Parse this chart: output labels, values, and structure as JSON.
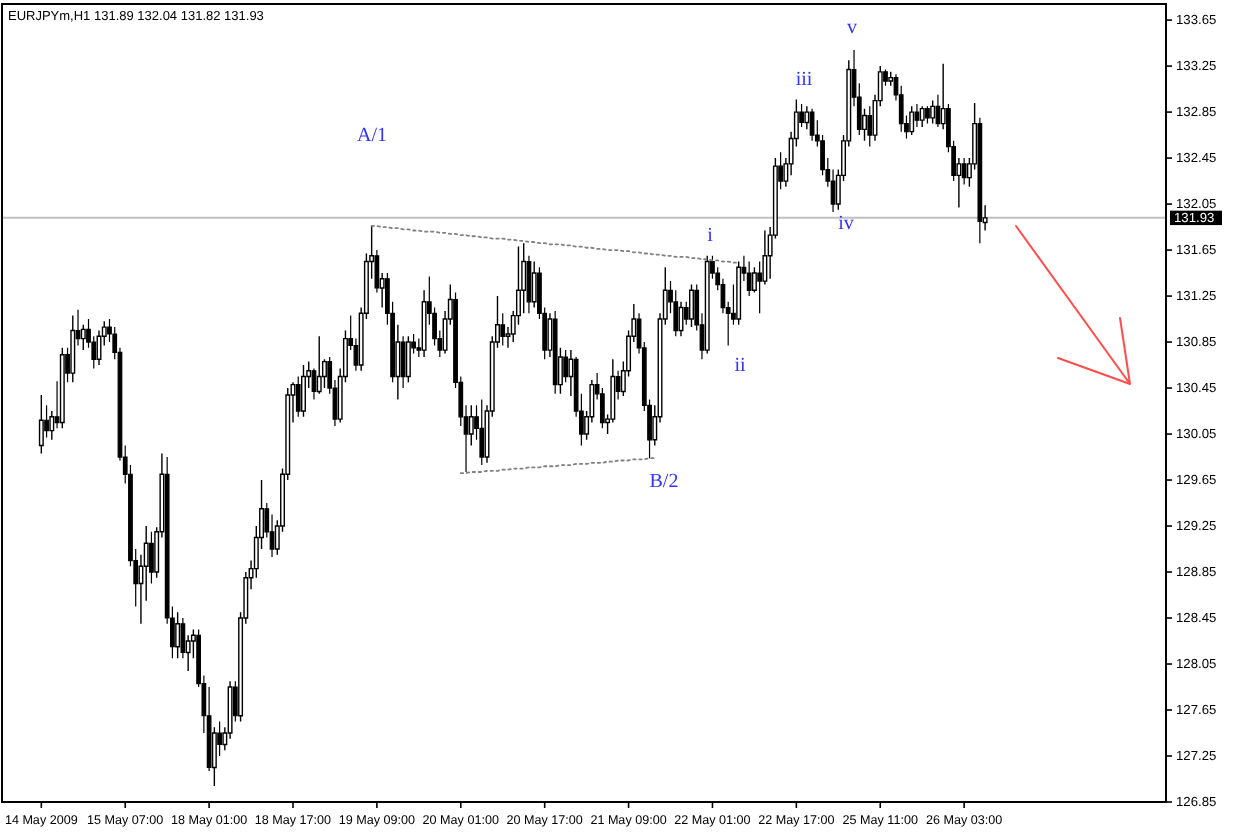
{
  "chart_data": {
    "type": "candlestick",
    "title": "EURJPYm,H1 131.89 132.04 131.82 131.93",
    "categories": [
      null,
      null,
      null,
      null,
      null,
      null,
      null,
      "14 May 2009",
      null,
      null,
      null,
      null,
      null,
      null,
      null,
      null,
      null,
      null,
      null,
      null,
      null,
      null,
      null,
      "15 May 07:00",
      null,
      null,
      null,
      null,
      null,
      null,
      null,
      null,
      null,
      null,
      null,
      null,
      null,
      null,
      null,
      "18 May 01:00",
      null,
      null,
      null,
      null,
      null,
      null,
      null,
      null,
      null,
      null,
      null,
      null,
      null,
      null,
      null,
      "18 May 17:00",
      null,
      null,
      null,
      null,
      null,
      null,
      null,
      null,
      null,
      null,
      null,
      null,
      null,
      null,
      null,
      "19 May 09:00",
      null,
      null,
      null,
      null,
      null,
      null,
      null,
      null,
      null,
      null,
      null,
      null,
      null,
      null,
      null,
      "20 May 01:00",
      null,
      null,
      null,
      null,
      null,
      null,
      null,
      null,
      null,
      null,
      null,
      null,
      null,
      null,
      null,
      "20 May 17:00",
      null,
      null,
      null,
      null,
      null,
      null,
      null,
      null,
      null,
      null,
      null,
      null,
      null,
      null,
      null,
      "21 May 09:00",
      null,
      null,
      null,
      null,
      null,
      null,
      null,
      null,
      null,
      null,
      null,
      null,
      null,
      null,
      null,
      "22 May 01:00",
      null,
      null,
      null,
      null,
      null,
      null,
      null,
      null,
      null,
      null,
      null,
      null,
      null,
      null,
      null,
      "22 May 17:00",
      null,
      null,
      null,
      null,
      null,
      null,
      null,
      null,
      null,
      null,
      null,
      null,
      null,
      null,
      null,
      "25 May 11:00",
      null,
      null,
      null,
      null,
      null,
      null,
      null,
      null,
      null,
      null,
      null,
      null,
      null,
      null,
      null,
      "26 May 03:00",
      null,
      null,
      null,
      null,
      null,
      null,
      null,
      null,
      null,
      null,
      null,
      null,
      null,
      null,
      null,
      null,
      null,
      null,
      null,
      null,
      null,
      null,
      null,
      null,
      null,
      null,
      null,
      null,
      null,
      null,
      null,
      null,
      null,
      null,
      null,
      null,
      null,
      null
    ],
    "ylim": [
      126.85,
      133.79
    ],
    "yticks": [
      126.85,
      127.25,
      127.65,
      128.05,
      128.45,
      128.85,
      129.25,
      129.65,
      130.05,
      130.45,
      130.85,
      131.25,
      131.65,
      132.05,
      132.45,
      132.85,
      133.25,
      133.65
    ],
    "series": [
      {
        "color": "#000000",
        "ohlc": [
          null,
          null,
          null,
          null,
          null,
          null,
          null,
          [
            129.95,
            130.39,
            129.88,
            130.17
          ],
          [
            130.17,
            130.3,
            130.02,
            130.08
          ],
          [
            130.08,
            130.25,
            130.0,
            130.2
          ],
          [
            130.2,
            130.51,
            130.1,
            130.15
          ],
          [
            130.15,
            130.8,
            130.1,
            130.74
          ],
          [
            130.74,
            130.8,
            130.5,
            130.58
          ],
          [
            130.58,
            131.08,
            130.5,
            130.95
          ],
          [
            130.95,
            131.13,
            130.82,
            130.88
          ],
          [
            130.88,
            131.0,
            130.78,
            130.96
          ],
          [
            130.96,
            131.05,
            130.8,
            130.85
          ],
          [
            130.85,
            130.9,
            130.62,
            130.7
          ],
          [
            130.7,
            130.95,
            130.65,
            130.9
          ],
          [
            130.9,
            131.03,
            130.82,
            130.98
          ],
          [
            130.98,
            131.05,
            130.85,
            130.92
          ],
          [
            130.92,
            130.98,
            130.7,
            130.76
          ],
          [
            130.76,
            130.8,
            129.82,
            129.85
          ],
          [
            129.85,
            129.95,
            129.62,
            129.7
          ],
          [
            129.7,
            129.78,
            128.9,
            128.95
          ],
          [
            128.95,
            129.05,
            128.55,
            128.75
          ],
          [
            128.75,
            129.0,
            128.4,
            128.9
          ],
          [
            128.9,
            129.25,
            128.6,
            129.1
          ],
          [
            129.1,
            129.2,
            128.75,
            128.85
          ],
          [
            128.85,
            129.24,
            128.8,
            129.2
          ],
          [
            129.2,
            129.88,
            129.15,
            129.7
          ],
          [
            129.7,
            129.85,
            128.4,
            128.45
          ],
          [
            128.45,
            128.55,
            128.1,
            128.2
          ],
          [
            128.2,
            128.5,
            128.1,
            128.4
          ],
          [
            128.4,
            128.45,
            128.1,
            128.15
          ],
          [
            128.15,
            128.3,
            127.99,
            128.25
          ],
          [
            128.25,
            128.35,
            128.1,
            128.3
          ],
          [
            128.3,
            128.35,
            127.85,
            127.88
          ],
          [
            127.88,
            127.95,
            127.45,
            127.6
          ],
          [
            127.6,
            127.85,
            127.12,
            127.15
          ],
          [
            127.15,
            127.5,
            126.99,
            127.45
          ],
          [
            127.45,
            127.55,
            127.25,
            127.35
          ],
          [
            127.35,
            127.5,
            127.3,
            127.45
          ],
          [
            127.45,
            127.9,
            127.4,
            127.85
          ],
          [
            127.85,
            127.9,
            127.55,
            127.6
          ],
          [
            127.6,
            128.5,
            127.55,
            128.45
          ],
          [
            128.45,
            128.85,
            128.4,
            128.8
          ],
          [
            128.8,
            128.95,
            128.7,
            128.88
          ],
          [
            128.88,
            129.25,
            128.8,
            129.15
          ],
          [
            129.15,
            129.65,
            129.05,
            129.4
          ],
          [
            129.4,
            129.45,
            129.15,
            129.2
          ],
          [
            129.2,
            129.35,
            128.98,
            129.05
          ],
          [
            129.05,
            129.3,
            129.0,
            129.25
          ],
          [
            129.25,
            129.75,
            129.2,
            129.7
          ],
          [
            129.7,
            130.45,
            129.65,
            130.39
          ],
          [
            130.39,
            130.5,
            130.15,
            130.48
          ],
          [
            130.48,
            130.55,
            130.2,
            130.25
          ],
          [
            130.25,
            130.65,
            130.2,
            130.55
          ],
          [
            130.55,
            130.68,
            130.45,
            130.6
          ],
          [
            130.6,
            130.62,
            130.35,
            130.42
          ],
          [
            130.42,
            130.9,
            130.4,
            130.55
          ],
          [
            130.55,
            130.7,
            130.45,
            130.68
          ],
          [
            130.68,
            130.72,
            130.4,
            130.45
          ],
          [
            130.45,
            130.52,
            130.12,
            130.18
          ],
          [
            130.18,
            130.62,
            130.15,
            130.55
          ],
          [
            130.55,
            130.95,
            130.5,
            130.88
          ],
          [
            130.88,
            131.08,
            130.78,
            130.82
          ],
          [
            130.82,
            130.88,
            130.6,
            130.65
          ],
          [
            130.65,
            131.15,
            130.6,
            131.1
          ],
          [
            131.1,
            131.62,
            131.05,
            131.55
          ],
          [
            131.55,
            131.86,
            131.4,
            131.6
          ],
          [
            131.6,
            131.65,
            131.28,
            131.32
          ],
          [
            131.32,
            131.45,
            131.15,
            131.4
          ],
          [
            131.4,
            131.45,
            131.0,
            131.1
          ],
          [
            131.1,
            131.2,
            130.5,
            130.55
          ],
          [
            130.55,
            131.0,
            130.35,
            130.85
          ],
          [
            130.85,
            130.9,
            130.45,
            130.55
          ],
          [
            130.55,
            130.9,
            130.5,
            130.85
          ],
          [
            130.85,
            130.92,
            130.75,
            130.8
          ],
          [
            130.8,
            130.88,
            130.72,
            130.78
          ],
          [
            130.78,
            131.3,
            130.72,
            131.2
          ],
          [
            131.2,
            131.42,
            131.0,
            131.1
          ],
          [
            131.1,
            131.15,
            130.82,
            130.88
          ],
          [
            130.88,
            130.95,
            130.72,
            130.78
          ],
          [
            130.78,
            131.12,
            130.75,
            131.05
          ],
          [
            131.05,
            131.35,
            131.0,
            131.22
          ],
          [
            131.22,
            131.28,
            130.45,
            130.5
          ],
          [
            130.5,
            130.55,
            130.12,
            130.2
          ],
          [
            130.2,
            130.3,
            129.72,
            130.05
          ],
          [
            130.05,
            130.3,
            129.95,
            130.2
          ],
          [
            130.2,
            130.3,
            130.0,
            130.1
          ],
          [
            130.1,
            130.35,
            129.78,
            129.85
          ],
          [
            129.85,
            130.3,
            129.8,
            130.25
          ],
          [
            130.25,
            130.9,
            130.2,
            130.85
          ],
          [
            130.85,
            131.25,
            130.8,
            131.0
          ],
          [
            131.0,
            131.1,
            130.82,
            130.9
          ],
          [
            130.9,
            130.98,
            130.8,
            130.92
          ],
          [
            130.92,
            131.12,
            130.85,
            131.08
          ],
          [
            131.08,
            131.68,
            131.0,
            131.3
          ],
          [
            131.3,
            131.71,
            131.1,
            131.55
          ],
          [
            131.55,
            131.6,
            131.1,
            131.2
          ],
          [
            131.2,
            131.55,
            131.15,
            131.45
          ],
          [
            131.45,
            131.5,
            131.05,
            131.1
          ],
          [
            131.1,
            131.15,
            130.7,
            130.78
          ],
          [
            130.78,
            131.1,
            130.72,
            131.05
          ],
          [
            131.05,
            131.12,
            130.4,
            130.48
          ],
          [
            130.48,
            130.8,
            130.4,
            130.72
          ],
          [
            130.72,
            130.78,
            130.5,
            130.55
          ],
          [
            130.55,
            130.78,
            130.38,
            130.7
          ],
          [
            130.7,
            130.72,
            130.2,
            130.25
          ],
          [
            130.25,
            130.4,
            129.95,
            130.05
          ],
          [
            130.05,
            130.25,
            130.0,
            130.2
          ],
          [
            130.2,
            130.52,
            130.15,
            130.48
          ],
          [
            130.48,
            130.58,
            130.35,
            130.4
          ],
          [
            130.4,
            130.45,
            130.1,
            130.15
          ],
          [
            130.15,
            130.22,
            130.05,
            130.18
          ],
          [
            130.18,
            130.7,
            130.15,
            130.55
          ],
          [
            130.55,
            130.6,
            130.35,
            130.42
          ],
          [
            130.42,
            130.68,
            130.38,
            130.6
          ],
          [
            130.6,
            130.95,
            130.55,
            130.9
          ],
          [
            130.9,
            131.18,
            130.85,
            131.05
          ],
          [
            131.05,
            131.1,
            130.75,
            130.8
          ],
          [
            130.8,
            130.85,
            130.25,
            130.3
          ],
          [
            130.3,
            130.35,
            129.84,
            130.0
          ],
          [
            130.0,
            130.3,
            129.95,
            130.2
          ],
          [
            130.2,
            131.1,
            130.15,
            131.05
          ],
          [
            131.05,
            131.5,
            131.0,
            131.3
          ],
          [
            131.3,
            131.38,
            131.1,
            131.2
          ],
          [
            131.2,
            131.3,
            130.9,
            130.95
          ],
          [
            130.95,
            131.2,
            130.9,
            131.15
          ],
          [
            131.15,
            131.2,
            131.0,
            131.05
          ],
          [
            131.05,
            131.35,
            130.98,
            131.3
          ],
          [
            131.3,
            131.35,
            130.95,
            131.0
          ],
          [
            131.0,
            131.1,
            130.7,
            130.78
          ],
          [
            130.78,
            131.6,
            130.75,
            131.55
          ],
          [
            131.55,
            131.6,
            131.4,
            131.45
          ],
          [
            131.45,
            131.5,
            131.3,
            131.35
          ],
          [
            131.35,
            131.4,
            131.1,
            131.15
          ],
          [
            131.15,
            131.2,
            130.82,
            131.1
          ],
          [
            131.1,
            131.35,
            131.0,
            131.05
          ],
          [
            131.05,
            131.55,
            131.0,
            131.5
          ],
          [
            131.5,
            131.6,
            131.38,
            131.45
          ],
          [
            131.45,
            131.55,
            131.25,
            131.3
          ],
          [
            131.3,
            131.5,
            131.28,
            131.45
          ],
          [
            131.45,
            131.55,
            131.1,
            131.38
          ],
          [
            131.38,
            131.82,
            131.35,
            131.6
          ],
          [
            131.6,
            131.85,
            131.4,
            131.78
          ],
          [
            131.78,
            132.45,
            131.75,
            132.38
          ],
          [
            132.38,
            132.5,
            132.18,
            132.25
          ],
          [
            132.25,
            132.45,
            132.2,
            132.4
          ],
          [
            132.4,
            132.68,
            132.3,
            132.62
          ],
          [
            132.62,
            132.96,
            132.55,
            132.85
          ],
          [
            132.85,
            132.92,
            132.72,
            132.76
          ],
          [
            132.76,
            132.9,
            132.7,
            132.85
          ],
          [
            132.85,
            132.88,
            132.6,
            132.65
          ],
          [
            132.65,
            132.78,
            132.55,
            132.6
          ],
          [
            132.6,
            132.65,
            132.3,
            132.35
          ],
          [
            132.35,
            132.45,
            132.2,
            132.25
          ],
          [
            132.25,
            132.35,
            131.98,
            132.05
          ],
          [
            132.05,
            132.35,
            132.0,
            132.3
          ],
          [
            132.3,
            132.65,
            132.25,
            132.6
          ],
          [
            132.6,
            133.3,
            132.55,
            133.22
          ],
          [
            133.22,
            133.39,
            132.9,
            132.98
          ],
          [
            132.98,
            133.1,
            132.65,
            132.7
          ],
          [
            132.7,
            132.88,
            132.6,
            132.82
          ],
          [
            132.82,
            132.9,
            132.55,
            132.65
          ],
          [
            132.65,
            133.0,
            132.6,
            132.95
          ],
          [
            132.95,
            133.25,
            132.9,
            133.2
          ],
          [
            133.2,
            133.22,
            133.08,
            133.12
          ],
          [
            133.12,
            133.2,
            133.08,
            133.15
          ],
          [
            133.15,
            133.18,
            132.95,
            133.0
          ],
          [
            133.0,
            133.08,
            132.68,
            132.75
          ],
          [
            132.75,
            132.82,
            132.62,
            132.68
          ],
          [
            132.68,
            132.9,
            132.65,
            132.85
          ],
          [
            132.85,
            132.92,
            132.72,
            132.78
          ],
          [
            132.78,
            132.9,
            132.72,
            132.88
          ],
          [
            132.88,
            132.9,
            132.75,
            132.8
          ],
          [
            132.8,
            132.95,
            132.75,
            132.9
          ],
          [
            132.9,
            133.0,
            132.72,
            132.75
          ],
          [
            132.75,
            133.27,
            132.7,
            132.88
          ],
          [
            132.88,
            132.92,
            132.5,
            132.55
          ],
          [
            132.55,
            132.6,
            132.25,
            132.3
          ],
          [
            132.3,
            132.45,
            132.02,
            132.4
          ],
          [
            132.4,
            132.45,
            132.22,
            132.28
          ],
          [
            132.28,
            132.45,
            132.2,
            132.4
          ],
          [
            132.4,
            132.93,
            132.35,
            132.75
          ],
          [
            132.75,
            132.8,
            131.71,
            131.9
          ],
          [
            131.89,
            132.04,
            131.82,
            131.93
          ],
          null,
          null,
          null,
          null,
          null,
          null,
          null,
          null,
          null,
          null,
          null,
          null,
          null,
          null,
          null,
          null,
          null,
          null,
          null,
          null,
          null,
          null,
          null,
          null,
          null,
          null,
          null,
          null,
          null,
          null,
          null,
          null,
          null,
          null
        ]
      },
      {
        "type": "line",
        "color": "#808080",
        "line_style": "dotted",
        "values": [
          null,
          null,
          null,
          null,
          null,
          null,
          null,
          null,
          null,
          null,
          null,
          null,
          null,
          null,
          null,
          null,
          null,
          null,
          null,
          null,
          null,
          null,
          null,
          null,
          null,
          null,
          null,
          null,
          null,
          null,
          null,
          null,
          null,
          null,
          null,
          null,
          null,
          null,
          null,
          null,
          null,
          null,
          null,
          null,
          null,
          null,
          null,
          null,
          null,
          null,
          null,
          null,
          null,
          null,
          null,
          null,
          null,
          null,
          null,
          null,
          null,
          null,
          null,
          null,
          null,
          null,
          null,
          null,
          null,
          null,
          131.86,
          131.86,
          131.85,
          131.85,
          131.84,
          131.84,
          131.83,
          131.83,
          131.82,
          131.82,
          131.81,
          131.81,
          131.81,
          131.8,
          131.8,
          131.79,
          131.79,
          131.78,
          131.78,
          131.77,
          131.77,
          131.76,
          131.76,
          131.75,
          131.75,
          131.75,
          131.74,
          131.74,
          131.73,
          131.73,
          131.72,
          131.72,
          131.71,
          131.71,
          131.7,
          131.7,
          131.7,
          131.69,
          131.69,
          131.68,
          131.68,
          131.67,
          131.67,
          131.66,
          131.66,
          131.65,
          131.65,
          131.65,
          131.64,
          131.64,
          131.63,
          131.63,
          131.62,
          131.62,
          131.61,
          131.61,
          131.6,
          131.6,
          131.59,
          131.59,
          131.59,
          131.58,
          131.58,
          131.57,
          131.57,
          131.56,
          131.56,
          131.55,
          131.55,
          131.54,
          131.54,
          null,
          null,
          null,
          null,
          null,
          null,
          null,
          null,
          null,
          null,
          null,
          null,
          null,
          null,
          null,
          null,
          null,
          null,
          null,
          null,
          null,
          null,
          null,
          null,
          null,
          null,
          null,
          null,
          null,
          null,
          null,
          null,
          null,
          null,
          null,
          null,
          null,
          null,
          null,
          null,
          null,
          null,
          null,
          null,
          null,
          null,
          null,
          null,
          null,
          null,
          null,
          null,
          null,
          null,
          null,
          null,
          null,
          null,
          null,
          null,
          null,
          null,
          null,
          null,
          null,
          null,
          null,
          null,
          null,
          null,
          null,
          null,
          null,
          null,
          null,
          null,
          null,
          null,
          null,
          null,
          null
        ]
      },
      {
        "type": "line",
        "color": "#808080",
        "line_style": "dotted",
        "values": [
          null,
          null,
          null,
          null,
          null,
          null,
          null,
          null,
          null,
          null,
          null,
          null,
          null,
          null,
          null,
          null,
          null,
          null,
          null,
          null,
          null,
          null,
          null,
          null,
          null,
          null,
          null,
          null,
          null,
          null,
          null,
          null,
          null,
          null,
          null,
          null,
          null,
          null,
          null,
          null,
          null,
          null,
          null,
          null,
          null,
          null,
          null,
          null,
          null,
          null,
          null,
          null,
          null,
          null,
          null,
          null,
          null,
          null,
          null,
          null,
          null,
          null,
          null,
          null,
          null,
          null,
          null,
          null,
          null,
          null,
          null,
          null,
          null,
          null,
          null,
          null,
          null,
          null,
          null,
          null,
          null,
          null,
          null,
          null,
          null,
          null,
          null,
          129.71,
          129.71,
          129.72,
          129.72,
          129.72,
          129.73,
          129.73,
          129.73,
          129.74,
          129.74,
          129.75,
          129.75,
          129.75,
          129.76,
          129.76,
          129.76,
          129.77,
          129.77,
          129.77,
          129.78,
          129.78,
          129.78,
          129.79,
          129.79,
          129.79,
          129.8,
          129.8,
          129.8,
          129.81,
          129.81,
          129.82,
          129.82,
          129.82,
          129.83,
          129.83,
          129.83,
          129.84,
          129.84,
          null,
          null,
          null,
          null,
          null,
          null,
          null,
          null,
          null,
          null,
          null,
          null,
          null,
          null,
          null,
          null,
          null,
          null,
          null,
          null,
          null,
          null,
          null,
          null,
          null,
          null,
          null,
          null,
          null,
          null,
          null,
          null,
          null,
          null,
          null,
          null,
          null,
          null,
          null,
          null,
          null,
          null,
          null,
          null,
          null,
          null,
          null,
          null,
          null,
          null,
          null,
          null,
          null,
          null,
          null,
          null,
          null,
          null,
          null,
          null,
          null,
          null,
          null,
          null,
          null,
          null,
          null,
          null,
          null,
          null,
          null,
          null,
          null,
          null,
          null,
          null,
          null,
          null,
          null,
          null,
          null,
          null,
          null,
          null,
          null,
          null,
          null,
          null,
          null,
          null,
          null,
          null,
          null,
          null,
          null,
          null,
          null
        ]
      }
    ],
    "ref_lines": [
      {
        "axis": "y",
        "value": 131.93,
        "label": "131.93",
        "color": "#c0c0c0"
      }
    ],
    "annotations": [
      "A/1",
      "B/2",
      "i",
      "ii",
      "iii",
      "iv",
      "v"
    ]
  }
}
